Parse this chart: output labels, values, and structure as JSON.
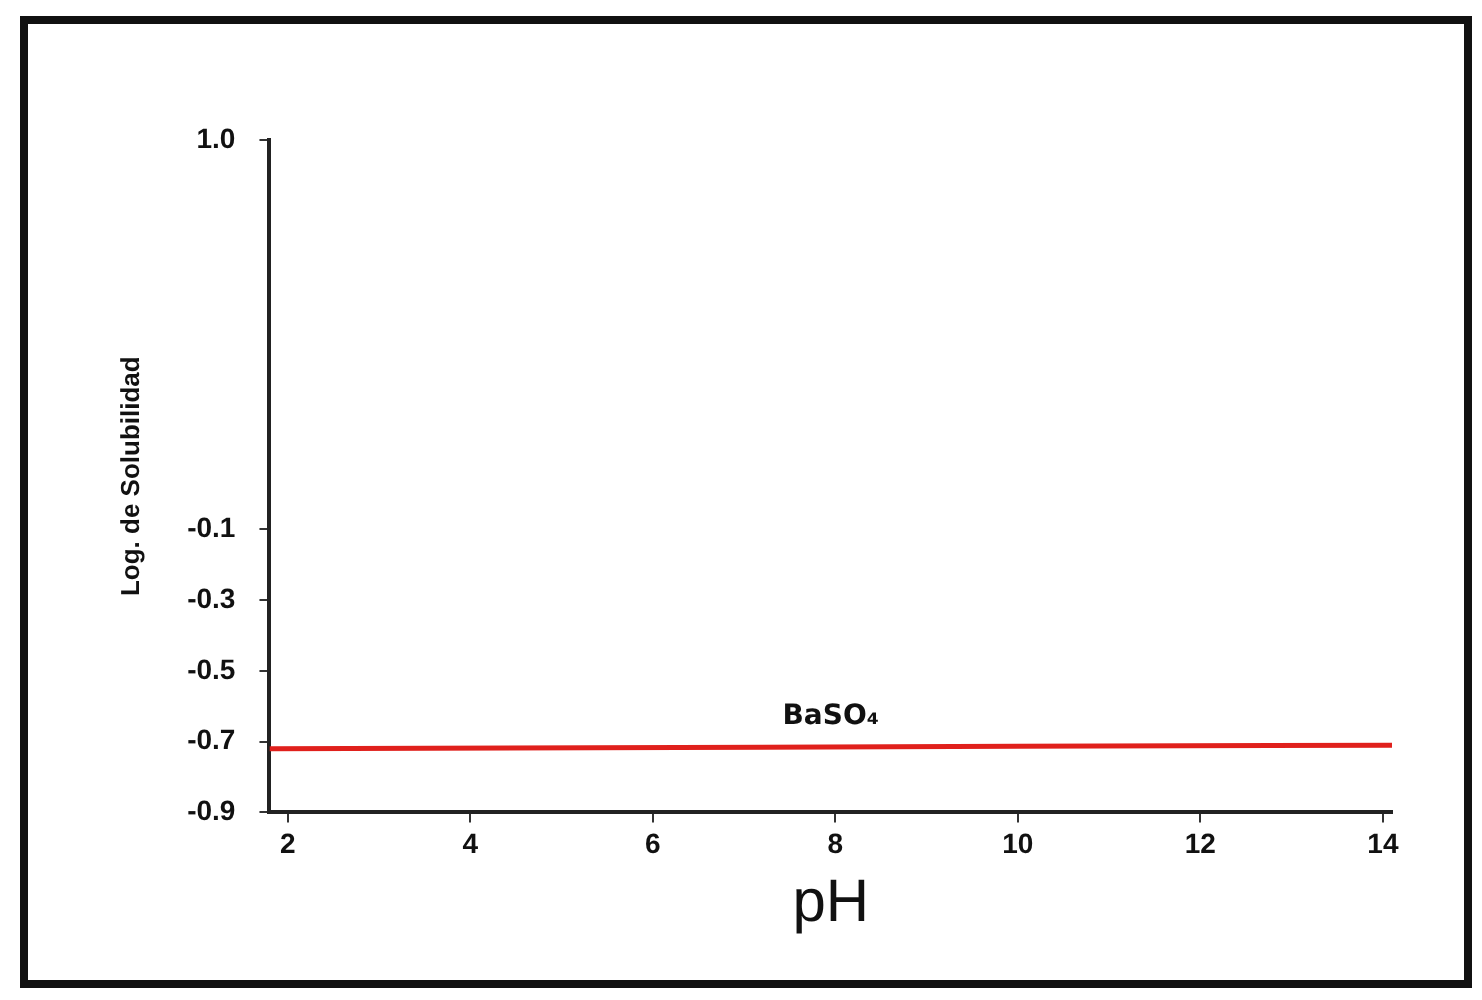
{
  "chart_data": {
    "type": "line",
    "xlabel": "pH",
    "ylabel": "Log. de Solubilidad",
    "series": [
      {
        "name": "BaSO₄",
        "color": "#e0201c",
        "x": [
          1.8,
          14.1
        ],
        "values": [
          -0.72,
          -0.71
        ]
      }
    ],
    "xlim": [
      1.8,
      14.1
    ],
    "xticks": [
      2,
      4,
      6,
      8,
      10,
      12,
      14
    ],
    "ylim": [
      -0.9,
      1.0
    ],
    "yticks": [
      -0.9,
      -0.7,
      -0.5,
      -0.3,
      -0.1,
      {
        "value": 1.0,
        "label": "1.0"
      }
    ],
    "grid": false,
    "legend": false,
    "marker": "none",
    "line_style": "solid"
  }
}
